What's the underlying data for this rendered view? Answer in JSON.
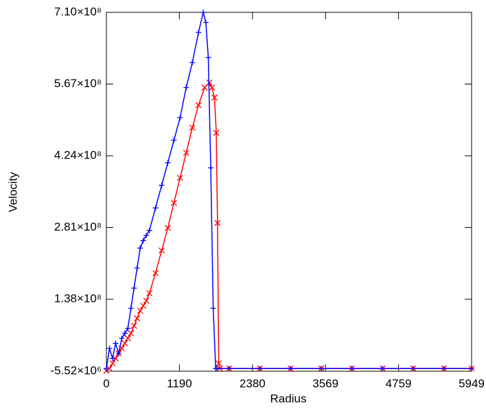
{
  "chart_data": {
    "type": "line",
    "x_label": "Radius",
    "y_label": "Velocity",
    "xlim": [
      0,
      5949
    ],
    "xticks": [
      0,
      1190,
      2380,
      3569,
      4759,
      5949
    ],
    "ylim": [
      -5520000,
      710000000
    ],
    "yticks": [
      {
        "value": -5520000,
        "label": "-5.52×10⁶"
      },
      {
        "value": 138000000,
        "label": "1.38×10⁸"
      },
      {
        "value": 281000000,
        "label": "2.81×10⁸"
      },
      {
        "value": 424000000,
        "label": "4.24×10⁸"
      },
      {
        "value": 567000000,
        "label": "5.67×10⁸"
      },
      {
        "value": 710000000,
        "label": "7.10×10⁸"
      }
    ],
    "series": [
      {
        "color": "#ff0000",
        "marker": "x",
        "x": [
          0,
          50,
          100,
          150,
          200,
          250,
          300,
          350,
          400,
          450,
          500,
          550,
          600,
          650,
          700,
          800,
          900,
          1000,
          1100,
          1200,
          1300,
          1400,
          1500,
          1600,
          1677,
          1720,
          1760,
          1790,
          1810,
          1830,
          1850,
          2000,
          2500,
          3000,
          3500,
          4000,
          4500,
          5000,
          5500,
          5949
        ],
        "values": [
          -5000000,
          0,
          10000000,
          20000000,
          30000000,
          40000000,
          50000000,
          60000000,
          70000000,
          85000000,
          100000000,
          115000000,
          125000000,
          135000000,
          150000000,
          190000000,
          235000000,
          280000000,
          330000000,
          380000000,
          430000000,
          480000000,
          525000000,
          560000000,
          570000000,
          560000000,
          540000000,
          470000000,
          290000000,
          10000000,
          0,
          0,
          0,
          0,
          0,
          0,
          0,
          0,
          0,
          0
        ]
      },
      {
        "color": "#0000ff",
        "marker": "+",
        "x": [
          0,
          50,
          100,
          150,
          200,
          250,
          300,
          350,
          400,
          450,
          500,
          550,
          600,
          650,
          700,
          800,
          900,
          1000,
          1100,
          1200,
          1300,
          1400,
          1500,
          1577,
          1620,
          1660,
          1700,
          1740,
          1780,
          1800,
          2000,
          2500,
          3000,
          3500,
          4000,
          4500,
          5000,
          5500,
          5949
        ],
        "values": [
          0,
          40000000,
          20000000,
          50000000,
          30000000,
          60000000,
          70000000,
          80000000,
          120000000,
          160000000,
          200000000,
          240000000,
          255000000,
          265000000,
          275000000,
          320000000,
          365000000,
          410000000,
          455000000,
          500000000,
          560000000,
          610000000,
          670000000,
          710000000,
          690000000,
          620000000,
          400000000,
          120000000,
          0,
          0,
          0,
          0,
          0,
          0,
          0,
          0,
          0,
          0,
          0
        ]
      }
    ]
  }
}
